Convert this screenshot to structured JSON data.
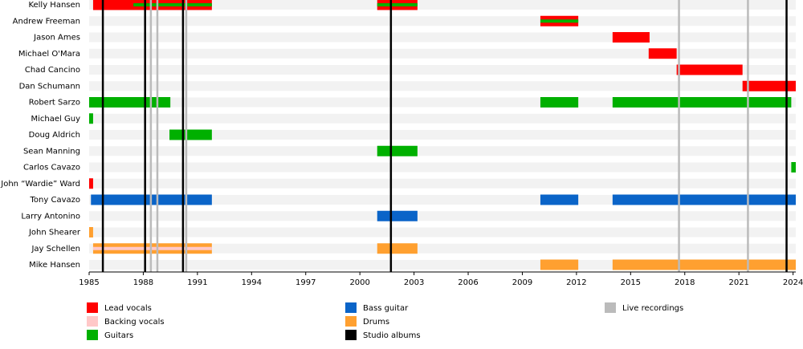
{
  "chart_data": {
    "type": "timeline",
    "xlim": [
      1985,
      2024.15
    ],
    "xticks": [
      1985,
      1988,
      1991,
      1994,
      1997,
      2000,
      2003,
      2006,
      2009,
      2012,
      2015,
      2018,
      2021,
      2024
    ],
    "roles": [
      {
        "name": "Lead vocals",
        "color": "#ff0000"
      },
      {
        "name": "Backing vocals",
        "color": "#ffc8c8"
      },
      {
        "name": "Guitars",
        "color": "#00b000"
      },
      {
        "name": "Bass guitar",
        "color": "#0a64c8"
      },
      {
        "name": "Drums",
        "color": "#ffa030"
      }
    ],
    "studio_albums": {
      "name": "Studio albums",
      "color": "#000000",
      "x": [
        1985.76,
        1988.1,
        1990.2,
        2001.72,
        2023.64
      ]
    },
    "live_recordings": {
      "name": "Live recordings",
      "color": "#bbbbbb",
      "x": [
        1988.42,
        1988.78,
        1990.38,
        2017.68,
        2021.5
      ]
    },
    "members": [
      {
        "name": "Kelly Hansen",
        "bars": [
          {
            "role": 0,
            "start": 1985.22,
            "end": 1991.8
          },
          {
            "role": 2,
            "start": 1987.45,
            "end": 1991.8
          },
          {
            "role": 0,
            "start": 2000.96,
            "end": 2003.19
          },
          {
            "role": 2,
            "start": 2000.96,
            "end": 2003.19
          }
        ]
      },
      {
        "name": "Andrew Freeman",
        "bars": [
          {
            "role": 0,
            "start": 2010.0,
            "end": 2012.1
          },
          {
            "role": 2,
            "start": 2010.0,
            "end": 2012.1
          }
        ]
      },
      {
        "name": "Jason Ames",
        "bars": [
          {
            "role": 0,
            "start": 2014.0,
            "end": 2016.05
          }
        ]
      },
      {
        "name": "Michael O'Mara",
        "bars": [
          {
            "role": 0,
            "start": 2016.0,
            "end": 2017.55
          }
        ]
      },
      {
        "name": "Chad Cancino",
        "bars": [
          {
            "role": 0,
            "start": 2017.55,
            "end": 2021.2
          }
        ]
      },
      {
        "name": "Dan Schumann",
        "bars": [
          {
            "role": 0,
            "start": 2021.2,
            "end": 2024.15
          }
        ]
      },
      {
        "name": "Robert Sarzo",
        "bars": [
          {
            "role": 2,
            "start": 1985.0,
            "end": 1989.5
          },
          {
            "role": 2,
            "start": 2010.0,
            "end": 2012.1
          },
          {
            "role": 2,
            "start": 2014.0,
            "end": 2023.9
          }
        ]
      },
      {
        "name": "Michael Guy",
        "bars": [
          {
            "role": 2,
            "start": 1985.0,
            "end": 1985.22
          }
        ]
      },
      {
        "name": "Doug Aldrich",
        "bars": [
          {
            "role": 2,
            "start": 1989.45,
            "end": 1991.8
          }
        ]
      },
      {
        "name": "Sean Manning",
        "bars": [
          {
            "role": 2,
            "start": 2000.96,
            "end": 2003.19
          }
        ]
      },
      {
        "name": "Carlos Cavazo",
        "bars": [
          {
            "role": 2,
            "start": 2023.9,
            "end": 2024.15
          }
        ]
      },
      {
        "name": "John “Wardie” Ward",
        "bars": [
          {
            "role": 0,
            "start": 1985.0,
            "end": 1985.22
          }
        ]
      },
      {
        "name": "Tony Cavazo",
        "bars": [
          {
            "role": 3,
            "start": 1985.1,
            "end": 1991.8
          },
          {
            "role": 3,
            "start": 2010.0,
            "end": 2012.1
          },
          {
            "role": 3,
            "start": 2014.0,
            "end": 2024.15
          }
        ]
      },
      {
        "name": "Larry Antonino",
        "bars": [
          {
            "role": 3,
            "start": 2000.96,
            "end": 2003.19
          }
        ]
      },
      {
        "name": "John Shearer",
        "bars": [
          {
            "role": 4,
            "start": 1985.0,
            "end": 1985.22
          }
        ]
      },
      {
        "name": "Jay Schellen",
        "bars": [
          {
            "role": 4,
            "start": 1985.22,
            "end": 1991.8
          },
          {
            "role": 1,
            "start": 1985.22,
            "end": 1991.8
          },
          {
            "role": 4,
            "start": 2000.96,
            "end": 2003.19
          }
        ]
      },
      {
        "name": "Mike Hansen",
        "bars": [
          {
            "role": 4,
            "start": 2010.0,
            "end": 2012.1
          },
          {
            "role": 4,
            "start": 2014.0,
            "end": 2024.15
          }
        ]
      }
    ]
  }
}
